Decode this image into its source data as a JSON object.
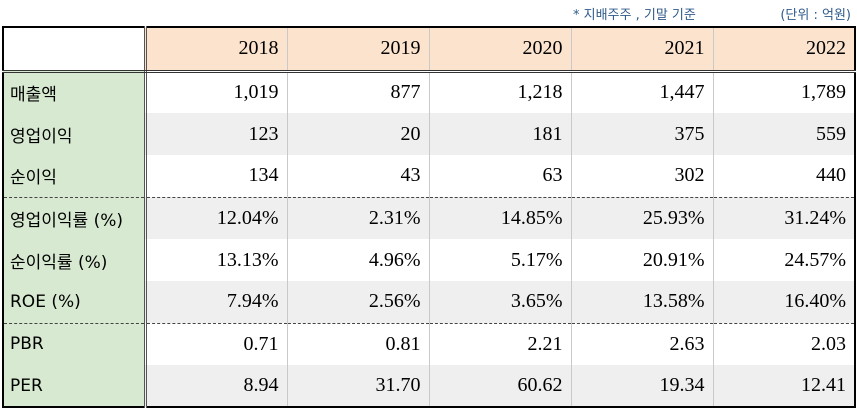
{
  "notes": {
    "basis": "* 지배주주 , 기말 기준",
    "unit": "(단위 : 억원)"
  },
  "table": {
    "years": [
      "2018",
      "2019",
      "2020",
      "2021",
      "2022"
    ],
    "rows": [
      {
        "label": "매출액",
        "values": [
          "1,019",
          "877",
          "1,218",
          "1,447",
          "1,789"
        ]
      },
      {
        "label": "영업이익",
        "values": [
          "123",
          "20",
          "181",
          "375",
          "559"
        ]
      },
      {
        "label": "순이익",
        "values": [
          "134",
          "43",
          "63",
          "302",
          "440"
        ]
      },
      {
        "label": "영업이익률 (%)",
        "values": [
          "12.04%",
          "2.31%",
          "14.85%",
          "25.93%",
          "31.24%"
        ]
      },
      {
        "label": "순이익률 (%)",
        "values": [
          "13.13%",
          "4.96%",
          "5.17%",
          "20.91%",
          "24.57%"
        ]
      },
      {
        "label": "ROE (%)",
        "values": [
          "7.94%",
          "2.56%",
          "3.65%",
          "13.58%",
          "16.40%"
        ]
      },
      {
        "label": "PBR",
        "values": [
          "0.71",
          "0.81",
          "2.21",
          "2.63",
          "2.03"
        ]
      },
      {
        "label": "PER",
        "values": [
          "8.94",
          "31.70",
          "60.62",
          "19.34",
          "12.41"
        ]
      }
    ]
  }
}
